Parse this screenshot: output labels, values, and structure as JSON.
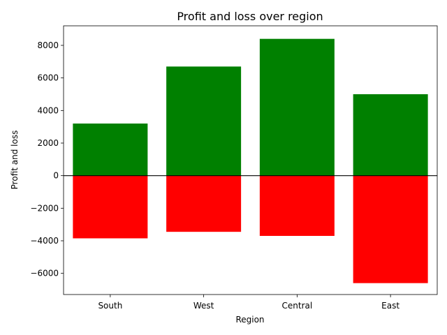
{
  "chart_data": {
    "type": "bar",
    "title": "Profit and loss over region",
    "xlabel": "Region",
    "ylabel": "Profit and loss",
    "categories": [
      "South",
      "West",
      "Central",
      "East"
    ],
    "series": [
      {
        "values": [
          3200,
          6700,
          8400,
          5000
        ],
        "color": "#008000"
      },
      {
        "values": [
          -3850,
          -3450,
          -3700,
          -6600
        ],
        "color": "#ff0000"
      }
    ],
    "ylim": [
      -7300,
      9200
    ],
    "yticks": [
      -6000,
      -4000,
      -2000,
      0,
      2000,
      4000,
      6000,
      8000
    ],
    "ytick_labels": [
      "−6000",
      "−4000",
      "−2000",
      "0",
      "2000",
      "4000",
      "6000",
      "8000"
    ],
    "zero_line": true,
    "grid": false,
    "legend": "none"
  }
}
